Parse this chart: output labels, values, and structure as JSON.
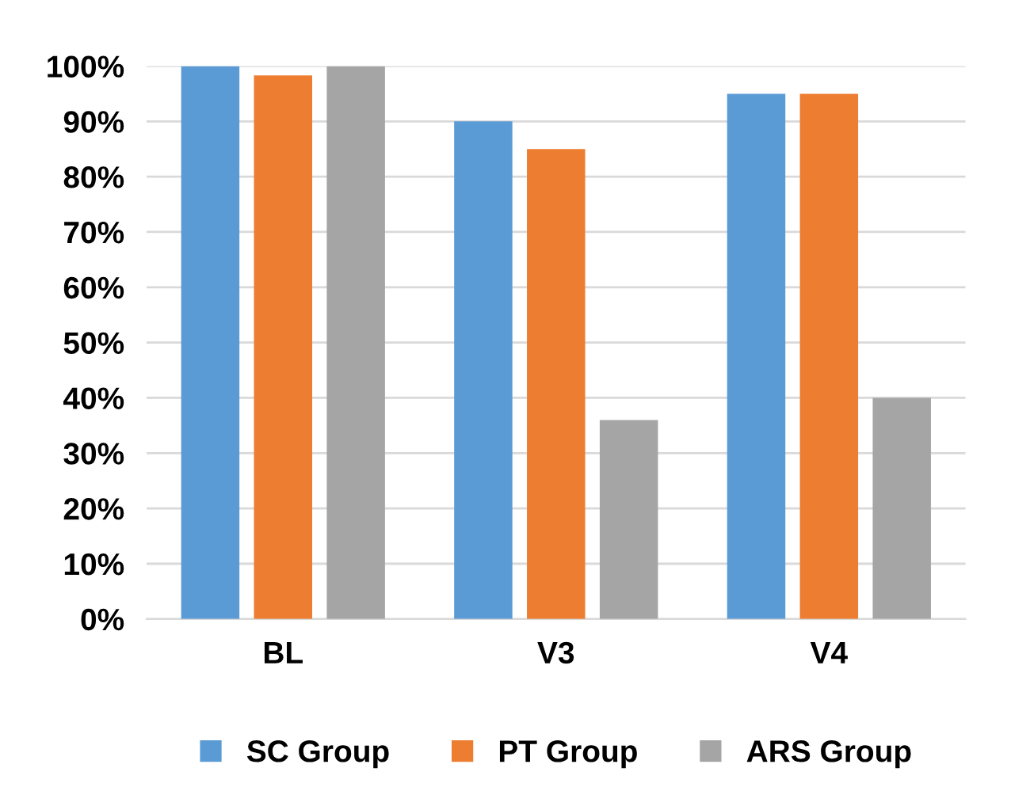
{
  "chart_data": {
    "type": "bar",
    "categories": [
      "BL",
      "V3",
      "V4"
    ],
    "series": [
      {
        "name": "SC Group",
        "color": "#5b9bd5",
        "values": [
          100,
          90,
          95
        ]
      },
      {
        "name": "PT Group",
        "color": "#ed7d31",
        "values": [
          98.3,
          85,
          95
        ]
      },
      {
        "name": "ARS Group",
        "color": "#a5a5a5",
        "values": [
          100,
          36,
          40
        ]
      }
    ],
    "ylim": [
      0,
      100
    ],
    "yticks": [
      {
        "value": 0,
        "label": "0%"
      },
      {
        "value": 10,
        "label": "10%"
      },
      {
        "value": 20,
        "label": "20%"
      },
      {
        "value": 30,
        "label": "30%"
      },
      {
        "value": 40,
        "label": "40%"
      },
      {
        "value": 50,
        "label": "50%"
      },
      {
        "value": 60,
        "label": "60%"
      },
      {
        "value": 70,
        "label": "70%"
      },
      {
        "value": 80,
        "label": "80%"
      },
      {
        "value": 90,
        "label": "90%"
      },
      {
        "value": 100,
        "label": "100%"
      }
    ],
    "grid": "y",
    "legend": "bottom"
  }
}
